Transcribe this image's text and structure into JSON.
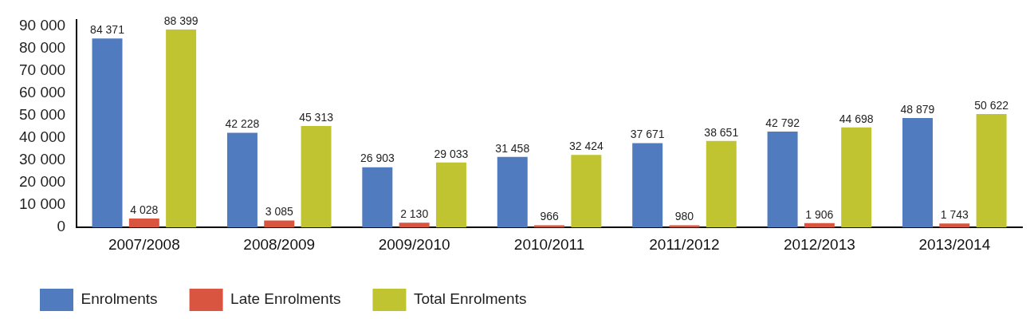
{
  "chart_data": {
    "type": "bar",
    "categories": [
      "2007/2008",
      "2008/2009",
      "2009/2010",
      "2010/2011",
      "2011/2012",
      "2012/2013",
      "2013/2014"
    ],
    "series": [
      {
        "name": "Enrolments",
        "color": "#517bbf",
        "values": [
          84371,
          42228,
          26903,
          31458,
          37671,
          42792,
          48879
        ],
        "value_labels": [
          "84 371",
          "42 228",
          "26 903",
          "31 458",
          "37 671",
          "42 792",
          "48 879"
        ]
      },
      {
        "name": "Late Enrolments",
        "color": "#d9553f",
        "values": [
          4028,
          3085,
          2130,
          966,
          980,
          1906,
          1743
        ],
        "value_labels": [
          "4 028",
          "3 085",
          "2 130",
          "966",
          "980",
          "1 906",
          "1 743"
        ]
      },
      {
        "name": "Total Enrolments",
        "color": "#bfc430",
        "values": [
          88399,
          45313,
          29033,
          32424,
          38651,
          44698,
          50622
        ],
        "value_labels": [
          "88 399",
          "45 313",
          "29 033",
          "32 424",
          "38 651",
          "44 698",
          "50 622"
        ]
      }
    ],
    "ylim": [
      0,
      92500
    ],
    "yticks": [
      {
        "value": 0,
        "label": "0"
      },
      {
        "value": 10000,
        "label": "10 000"
      },
      {
        "value": 20000,
        "label": "20 000"
      },
      {
        "value": 30000,
        "label": "30 000"
      },
      {
        "value": 40000,
        "label": "40 000"
      },
      {
        "value": 50000,
        "label": "50 000"
      },
      {
        "value": 60000,
        "label": "60 000"
      },
      {
        "value": 70000,
        "label": "70 000"
      },
      {
        "value": 80000,
        "label": "80 000"
      },
      {
        "value": 90000,
        "label": "90 000"
      }
    ],
    "grid": false,
    "legend": "bottom left"
  }
}
